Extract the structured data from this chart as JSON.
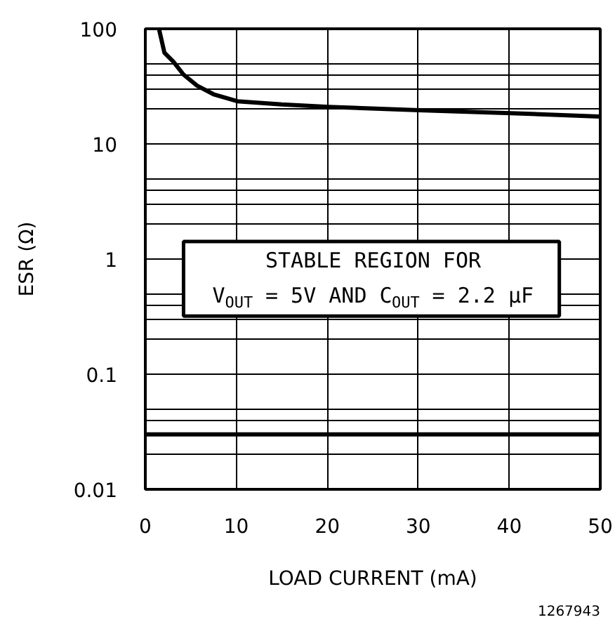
{
  "chart_data": {
    "type": "line",
    "xlabel": "LOAD CURRENT (mA)",
    "ylabel": "ESR (Ω)",
    "log": "y",
    "grid": true,
    "marker": "none",
    "line_style": "solid",
    "xlim": [
      0,
      50
    ],
    "xticks": [
      0,
      10,
      20,
      30,
      40,
      50
    ],
    "ylim": [
      0.01,
      100
    ],
    "yticks": [
      0.01,
      {
        "value": 0.02,
        "label": null
      },
      {
        "value": 0.03,
        "label": null
      },
      {
        "value": 0.04,
        "label": null
      },
      {
        "value": 0.05,
        "label": null
      },
      0.1,
      {
        "value": 0.2,
        "label": null
      },
      {
        "value": 0.3,
        "label": null
      },
      {
        "value": 0.4,
        "label": null
      },
      {
        "value": 0.5,
        "label": null
      },
      1,
      {
        "value": 2,
        "label": null
      },
      {
        "value": 3,
        "label": null
      },
      {
        "value": 4,
        "label": null
      },
      {
        "value": 5,
        "label": null
      },
      10,
      {
        "value": 20,
        "label": null
      },
      {
        "value": 30,
        "label": null
      },
      {
        "value": 40,
        "label": null
      },
      {
        "value": 50,
        "label": null
      },
      100
    ],
    "series": [
      {
        "color": "#000000",
        "x": [
          1.5,
          2.1,
          3.1,
          4.2,
          5.7,
          7.5,
          10.1,
          15,
          20.1,
          30.1,
          40.2,
          49.9
        ],
        "values": [
          100,
          62,
          51.6,
          40,
          32,
          27,
          23.5,
          22,
          21,
          19.6,
          18.5,
          17.3
        ]
      },
      {
        "color": "#000000",
        "x": [
          0,
          50
        ],
        "values": [
          0.03,
          0.03
        ]
      }
    ],
    "annotations": [
      "STABLE REGION FOR",
      "V$_{OUT}$ = 5V AND C$_{OUT}$ = 2.2 µF",
      "1267943"
    ]
  }
}
